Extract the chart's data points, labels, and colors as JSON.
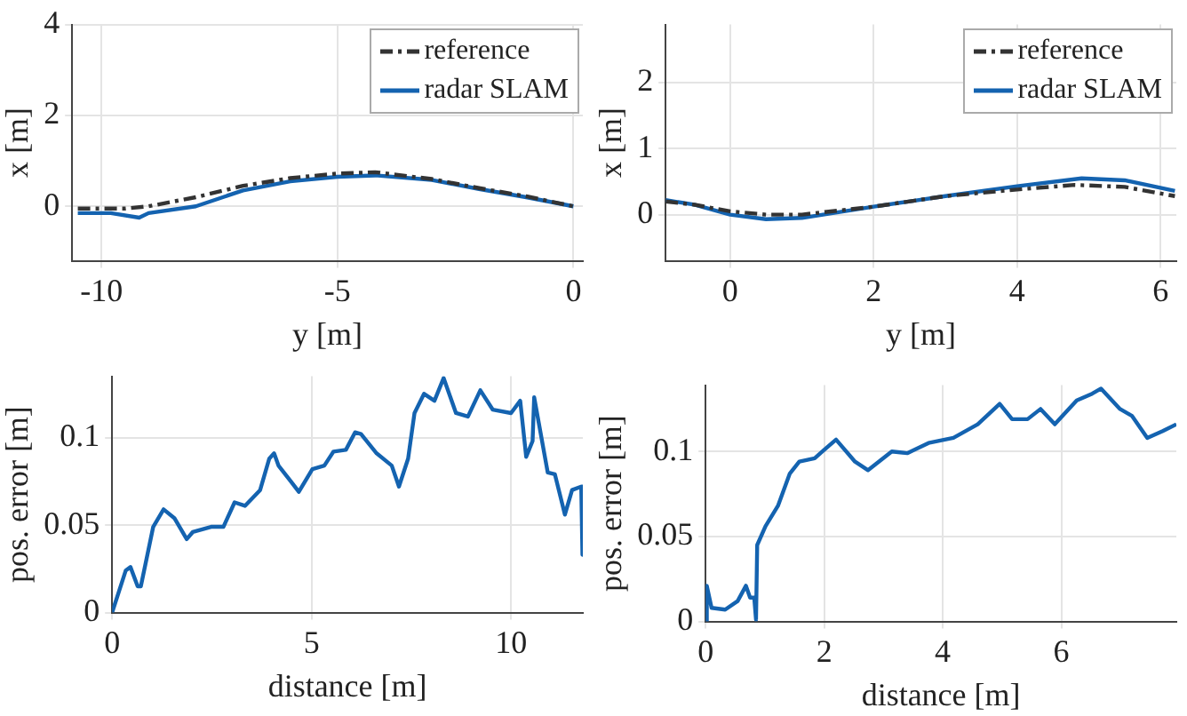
{
  "chart_data": [
    {
      "type": "line",
      "xlabel": "y [m]",
      "ylabel": "x [m]",
      "xlim": [
        -10.62,
        0.2
      ],
      "xticks": [
        -10,
        -5,
        0
      ],
      "ylim": [
        -1.2,
        4
      ],
      "yticks": [
        0,
        2,
        4
      ],
      "grid": true,
      "legend": "top right",
      "series": [
        {
          "name": "reference",
          "color": "#333333",
          "line_style": "dashed",
          "x": [
            -10.5,
            -9.5,
            -9,
            -8,
            -7,
            -6,
            -5,
            -4.2,
            -3,
            -2,
            -1,
            0
          ],
          "values": [
            -0.05,
            -0.05,
            0,
            0.2,
            0.45,
            0.62,
            0.72,
            0.75,
            0.6,
            0.4,
            0.22,
            0
          ]
        },
        {
          "name": "radar SLAM",
          "color": "#1463b0",
          "line_style": "solid",
          "x": [
            -10.5,
            -9.8,
            -9.2,
            -9,
            -8,
            -7,
            -6,
            -5,
            -4.2,
            -3,
            -2,
            -1,
            0
          ],
          "values": [
            -0.15,
            -0.15,
            -0.25,
            -0.15,
            0,
            0.35,
            0.55,
            0.65,
            0.68,
            0.58,
            0.38,
            0.2,
            0
          ]
        }
      ]
    },
    {
      "type": "line",
      "xlabel": "y [m]",
      "ylabel": "x [m]",
      "xlim": [
        -0.9,
        6.22
      ],
      "xticks": [
        0,
        2,
        4,
        6
      ],
      "ylim": [
        -0.7,
        2.88
      ],
      "yticks": [
        0,
        1,
        2
      ],
      "grid": true,
      "legend": "top right",
      "series": [
        {
          "name": "reference",
          "color": "#333333",
          "line_style": "dashed",
          "x": [
            -0.9,
            -0.5,
            0,
            0.5,
            1,
            2,
            3,
            4,
            4.8,
            5.5,
            6.2
          ],
          "values": [
            0.2,
            0.15,
            0.05,
            0,
            0,
            0.12,
            0.28,
            0.38,
            0.45,
            0.42,
            0.28
          ]
        },
        {
          "name": "radar SLAM",
          "color": "#1463b0",
          "line_style": "solid",
          "x": [
            -0.9,
            -0.5,
            0,
            0.5,
            1,
            2,
            3,
            4,
            4.9,
            5.5,
            6.2
          ],
          "values": [
            0.22,
            0.15,
            0,
            -0.07,
            -0.05,
            0.12,
            0.28,
            0.43,
            0.55,
            0.52,
            0.36
          ]
        }
      ]
    },
    {
      "type": "line",
      "xlabel": "distance [m]",
      "ylabel": "pos. error [m]",
      "xlim": [
        0,
        11.8
      ],
      "xticks": [
        0,
        5,
        10
      ],
      "ylim": [
        0,
        0.135
      ],
      "yticks": [
        0,
        0.05,
        0.1
      ],
      "grid": true,
      "series": [
        {
          "color": "#1463b0",
          "line_style": "solid",
          "x": [
            0,
            0.34,
            0.46,
            0.64,
            0.72,
            1.03,
            1.29,
            1.56,
            1.87,
            2.02,
            2.48,
            2.79,
            3.07,
            3.33,
            3.71,
            3.94,
            4.06,
            4.17,
            4.48,
            4.68,
            5.02,
            5.32,
            5.55,
            5.86,
            6.09,
            6.24,
            6.63,
            7.01,
            7.19,
            7.42,
            7.58,
            7.82,
            8.08,
            8.31,
            8.62,
            8.92,
            9.23,
            9.54,
            10,
            10.23,
            10.38,
            10.54,
            10.58,
            10.92,
            11.1,
            11.35,
            11.53,
            11.76,
            11.79
          ],
          "values": [
            0,
            0.024,
            0.026,
            0.015,
            0.015,
            0.049,
            0.059,
            0.054,
            0.042,
            0.046,
            0.049,
            0.049,
            0.063,
            0.061,
            0.07,
            0.088,
            0.091,
            0.084,
            0.075,
            0.069,
            0.082,
            0.084,
            0.092,
            0.093,
            0.103,
            0.102,
            0.091,
            0.084,
            0.072,
            0.088,
            0.114,
            0.125,
            0.121,
            0.134,
            0.114,
            0.112,
            0.127,
            0.116,
            0.114,
            0.121,
            0.089,
            0.098,
            0.123,
            0.08,
            0.079,
            0.056,
            0.07,
            0.072,
            0.033
          ]
        }
      ]
    },
    {
      "type": "line",
      "xlabel": "distance [m]",
      "ylabel": "pos. error [m]",
      "xlim": [
        0,
        7.94
      ],
      "xticks": [
        0,
        2,
        4,
        6
      ],
      "ylim": [
        0,
        0.139
      ],
      "yticks": [
        0,
        0.05,
        0.1
      ],
      "grid": true,
      "series": [
        {
          "color": "#1463b0",
          "line_style": "solid",
          "x": [
            0,
            0.02,
            0.1,
            0.33,
            0.54,
            0.68,
            0.75,
            0.82,
            0.85,
            0.87,
            1.01,
            1.22,
            1.42,
            1.58,
            1.84,
            2,
            2.2,
            2.52,
            2.74,
            3.14,
            3.4,
            3.76,
            4.18,
            4.59,
            4.96,
            5.17,
            5.43,
            5.65,
            5.89,
            6.26,
            6.52,
            6.67,
            6.99,
            7.19,
            7.45,
            7.71,
            7.94
          ],
          "values": [
            0,
            0.021,
            0.008,
            0.007,
            0.012,
            0.021,
            0.014,
            0.014,
            0.001,
            0.045,
            0.056,
            0.068,
            0.087,
            0.094,
            0.096,
            0.101,
            0.107,
            0.094,
            0.089,
            0.1,
            0.099,
            0.105,
            0.108,
            0.116,
            0.128,
            0.119,
            0.119,
            0.125,
            0.116,
            0.13,
            0.134,
            0.137,
            0.125,
            0.121,
            0.108,
            0.112,
            0.116
          ]
        }
      ]
    }
  ]
}
